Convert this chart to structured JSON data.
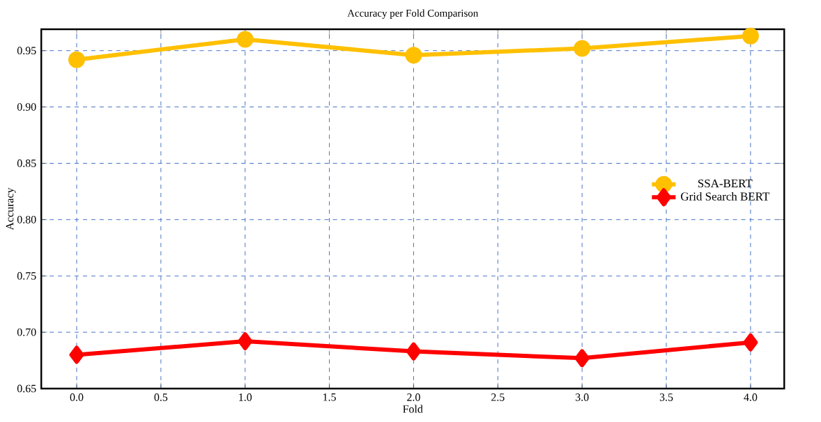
{
  "chart_data": {
    "type": "line",
    "title": "Accuracy per Fold Comparison",
    "xlabel": "Fold",
    "ylabel": "Accuracy",
    "x": [
      0,
      1,
      2,
      3,
      4
    ],
    "series": [
      {
        "name": "SSA-BERT",
        "color": "#ffc000",
        "marker": "circle",
        "values": [
          0.942,
          0.96,
          0.946,
          0.952,
          0.963
        ]
      },
      {
        "name": "Grid Search BERT",
        "color": "#ff0000",
        "marker": "diamond",
        "values": [
          0.68,
          0.692,
          0.683,
          0.677,
          0.691
        ]
      }
    ],
    "xlim": [
      -0.21,
      4.2
    ],
    "ylim": [
      0.65,
      0.969
    ],
    "xticks": [
      {
        "value": 0,
        "label": "0.0"
      },
      {
        "value": 0.5,
        "label": "0.5"
      },
      {
        "value": 1,
        "label": "1.0"
      },
      {
        "value": 1.5,
        "label": "1.5"
      },
      {
        "value": 2,
        "label": "2.0"
      },
      {
        "value": 2.5,
        "label": "2.5"
      },
      {
        "value": 3,
        "label": "3.0"
      },
      {
        "value": 3.5,
        "label": "3.5"
      },
      {
        "value": 4,
        "label": "4.0"
      }
    ],
    "yticks": [
      0.65,
      {
        "value": 0.7,
        "label": "0.70"
      },
      0.75,
      {
        "value": 0.8,
        "label": "0.80"
      },
      0.85,
      {
        "value": 0.9,
        "label": "0.90"
      },
      0.95
    ],
    "grid": true,
    "legend": "right",
    "line_style": "solid"
  }
}
